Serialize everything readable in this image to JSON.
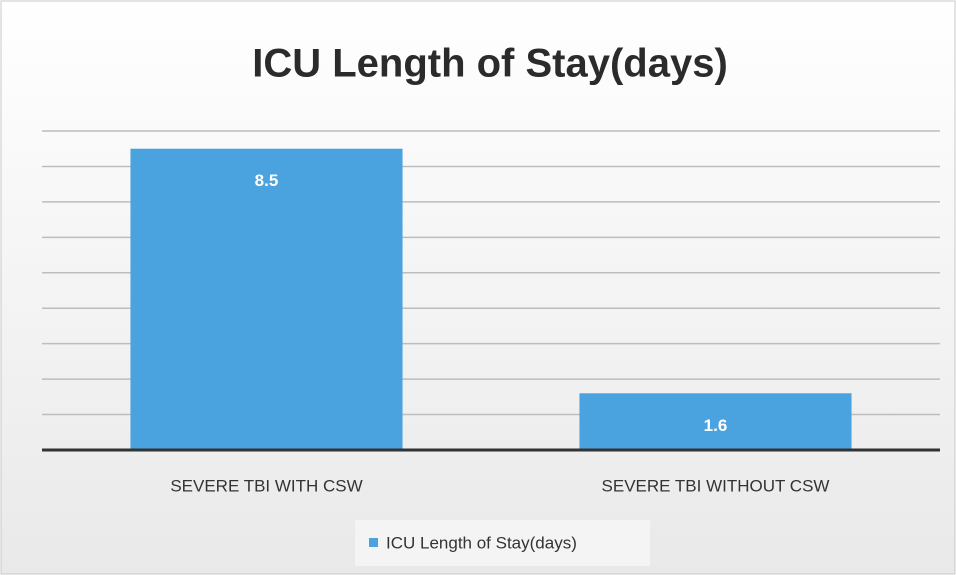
{
  "chart_data": {
    "type": "bar",
    "title": "ICU Length of Stay(days)",
    "categories": [
      "SEVERE TBI WITH CSW",
      "SEVERE TBI WITHOUT CSW"
    ],
    "series": [
      {
        "name": "ICU Length of Stay(days)",
        "color": "#4aa3df",
        "values": [
          8.5,
          1.6
        ]
      }
    ],
    "ylim": [
      0,
      9
    ],
    "yticks": [
      0,
      1,
      2,
      3,
      4,
      5,
      6,
      7,
      8,
      9
    ],
    "grid": true,
    "tick_labels": false,
    "data_labels": true,
    "legend": "bottom"
  }
}
